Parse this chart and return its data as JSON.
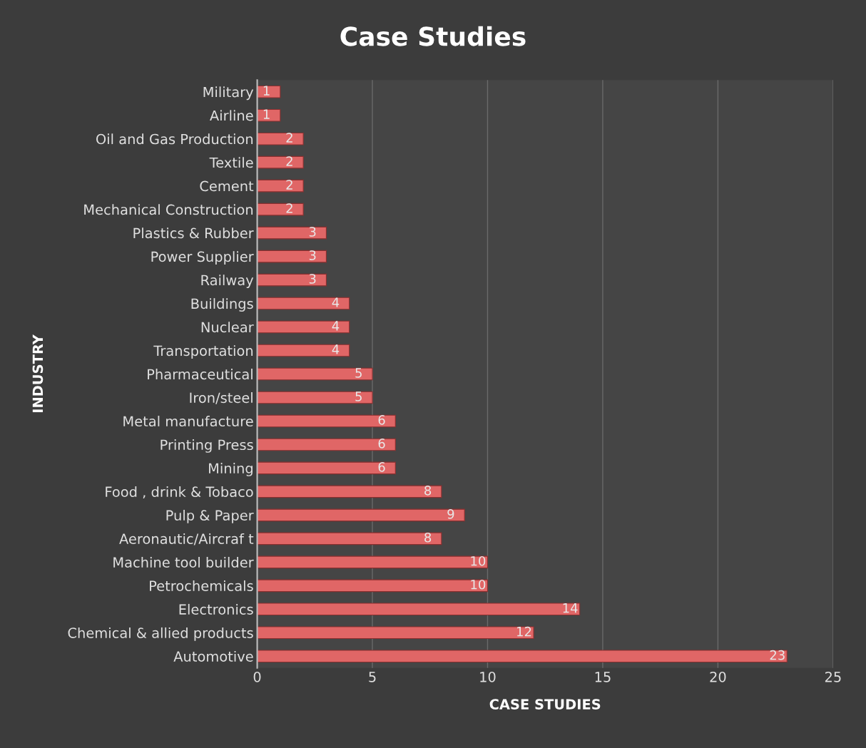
{
  "chart_data": {
    "type": "bar",
    "orientation": "horizontal",
    "title": "Case Studies",
    "xlabel": "CASE STUDIES",
    "ylabel": "INDUSTRY",
    "categories": [
      "Military",
      "Airline",
      "Oil and Gas Production",
      "Textile",
      "Cement",
      "Mechanical Construction",
      "Plastics & Rubber",
      "Power Supplier",
      "Railway",
      "Buildings",
      "Nuclear",
      "Transportation",
      "Pharmaceutical",
      "Iron/steel",
      "Metal manufacture",
      "Printing Press",
      "Mining",
      "Food , drink & Tobaco",
      "Pulp & Paper",
      "Aeronautic/Aircraf t",
      "Machine tool builder",
      "Petrochemicals",
      "Electronics",
      "Chemical & allied products",
      "Automotive"
    ],
    "values": [
      1,
      1,
      2,
      2,
      2,
      2,
      3,
      3,
      3,
      4,
      4,
      4,
      5,
      5,
      6,
      6,
      6,
      8,
      9,
      8,
      10,
      10,
      14,
      12,
      23
    ],
    "color": "#e06666",
    "xlim": [
      0,
      25
    ],
    "xticks": [
      0,
      5,
      10,
      15,
      20,
      25
    ],
    "grid": "x",
    "data_labels": true
  }
}
